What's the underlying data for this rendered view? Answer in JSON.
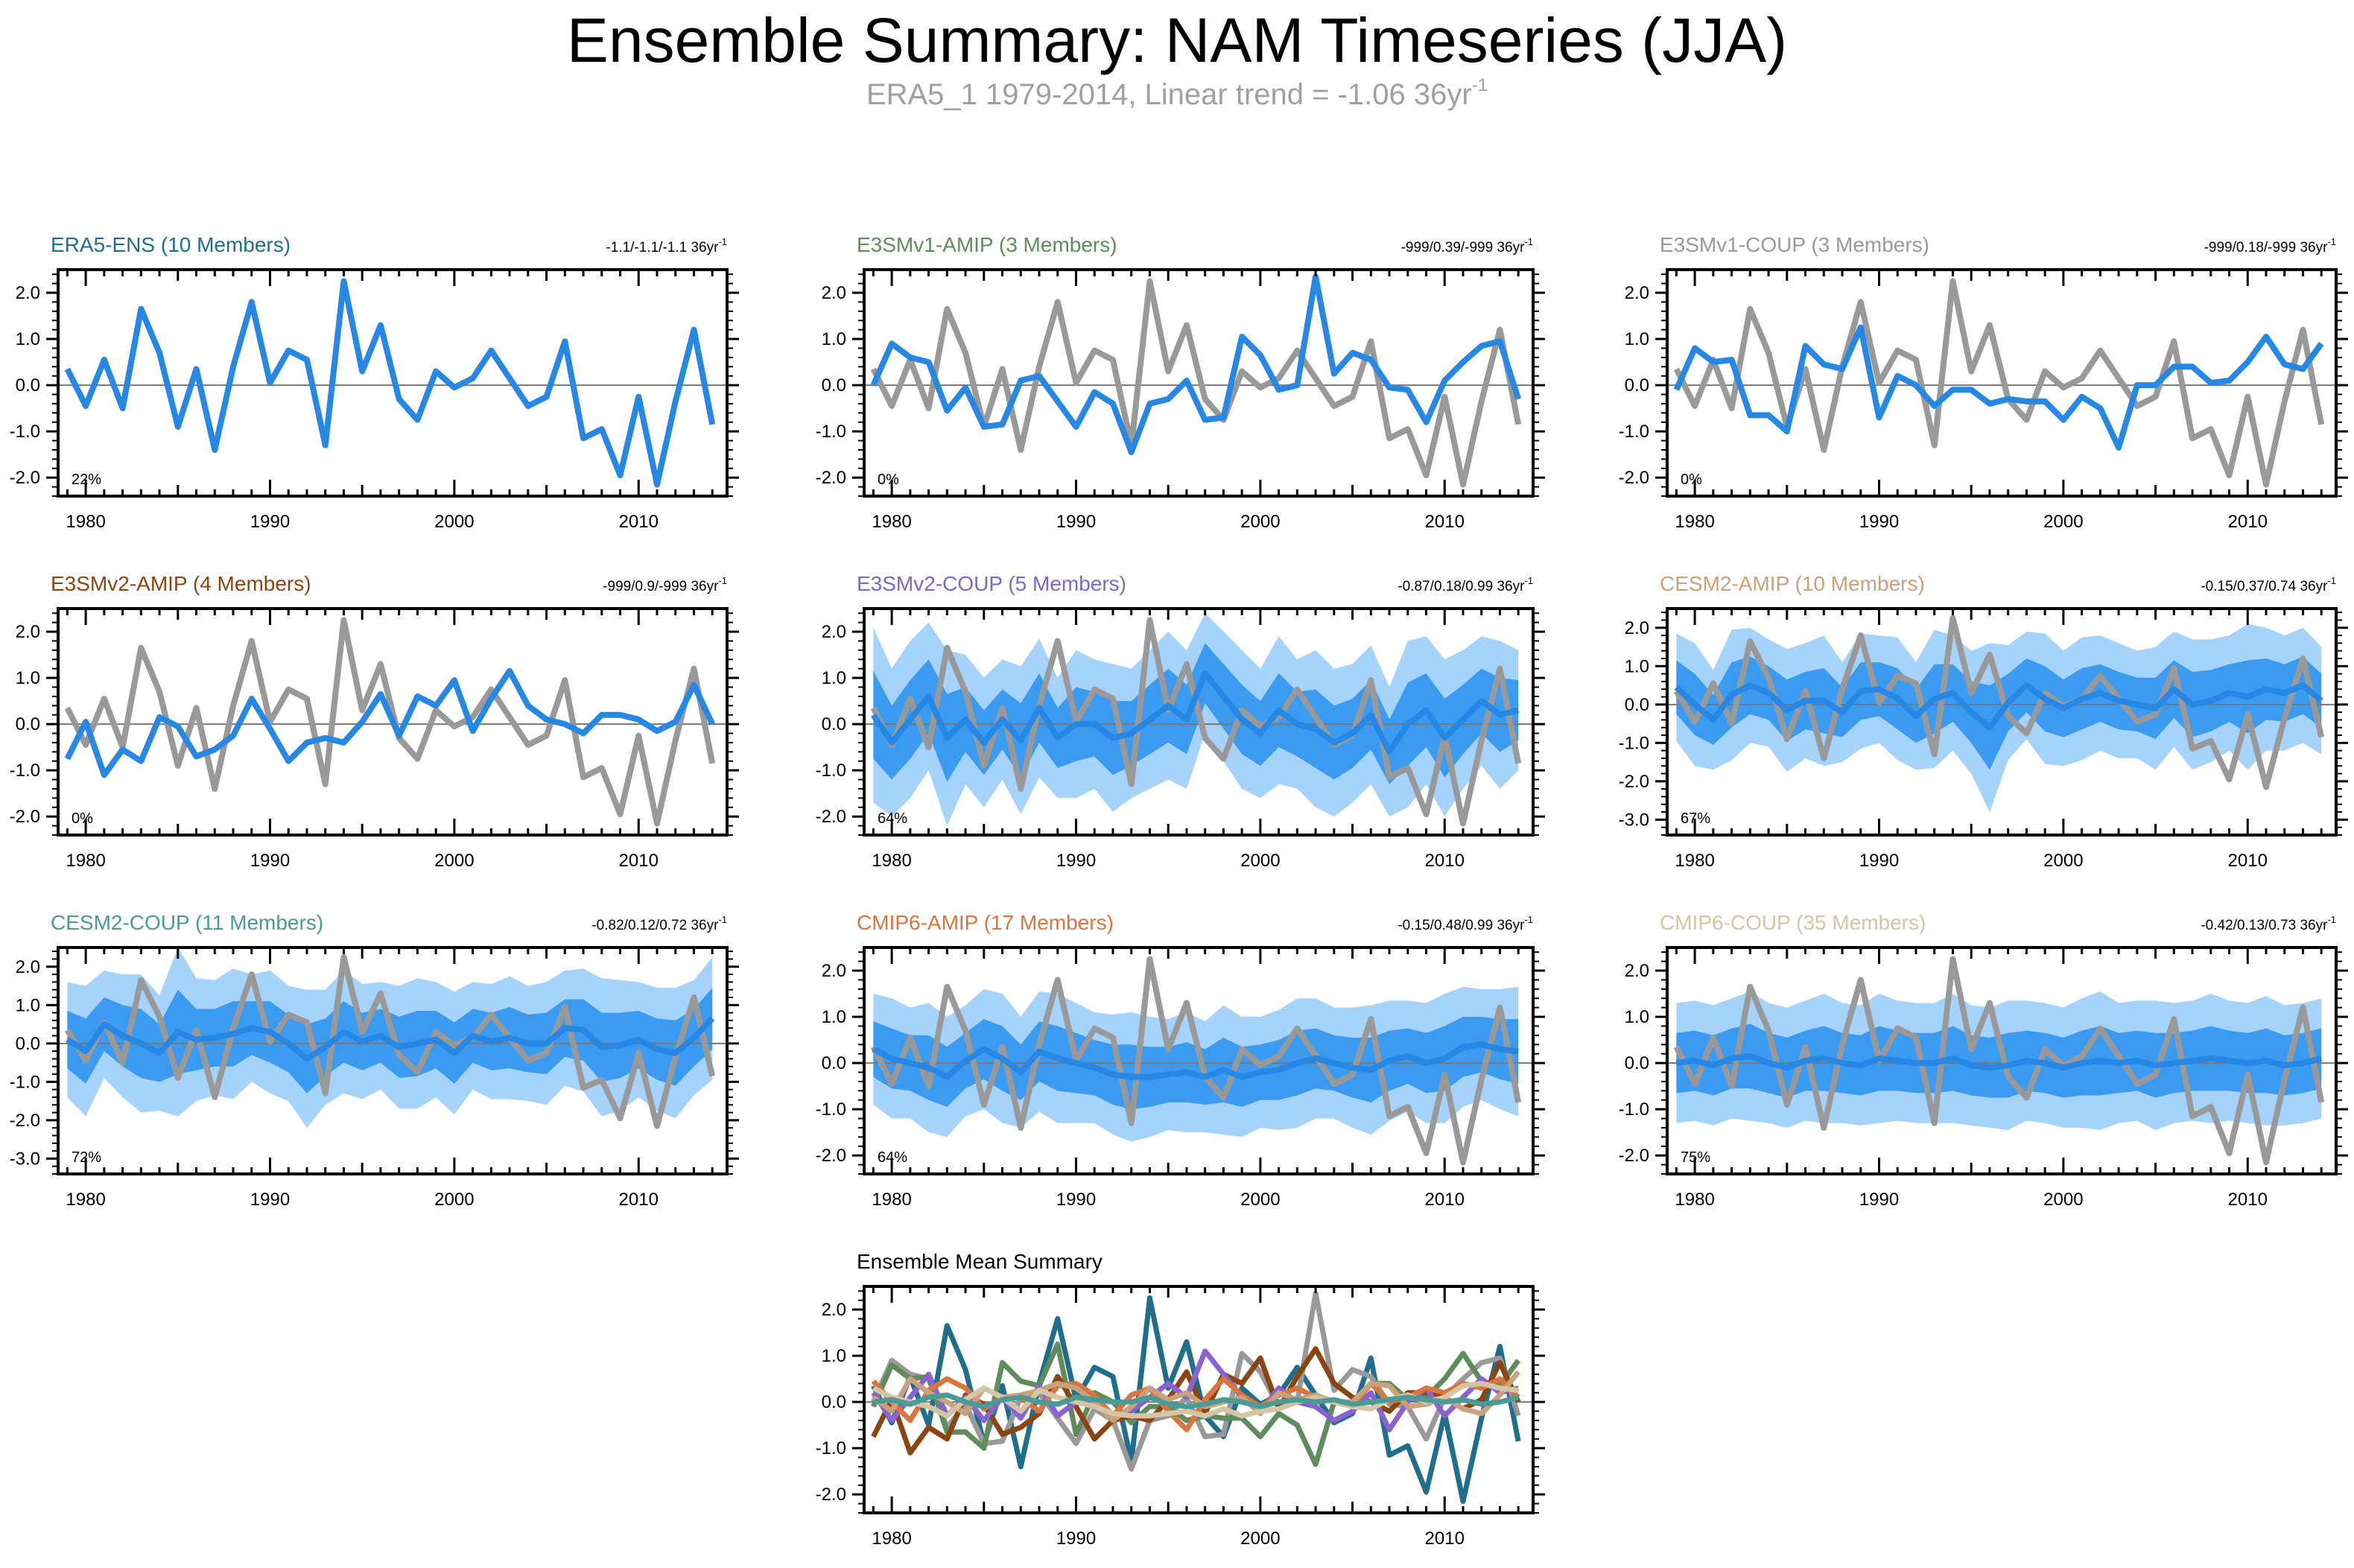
{
  "title": "Ensemble Summary: NAM Timeseries (JJA)",
  "subtitle": {
    "text": "ERA5_1 1979-2014, Linear trend = -1.06 36yr",
    "sup": "-1"
  },
  "colors": {
    "obs_gray": "#999999",
    "ens_mean": "#2787e5",
    "band_outer": "#a6d3fb",
    "band_inner": "#3a9bf0",
    "zero_line": "#777777"
  },
  "chart_data": [
    {
      "type": "line",
      "title": "ERA5-ENS (10 Members)",
      "title_color": "#1f6e8c",
      "trend": "-1.1/-1.1/-1.1 36yr",
      "trend_sup": "-1",
      "pct": "22%",
      "bands": false,
      "obs": false,
      "x_ticks": [
        "1980",
        "1990",
        "2000",
        "2010"
      ],
      "y_ticks": [
        "2.0",
        "1.0",
        "0.0",
        "-1.0",
        "-2.0"
      ],
      "ylim": [
        -2.4,
        2.5
      ],
      "xlim": [
        1978.5,
        2014.8
      ],
      "mean": [
        0.35,
        -0.45,
        0.55,
        -0.5,
        1.65,
        0.7,
        -0.9,
        0.35,
        -1.4,
        0.4,
        1.8,
        0.05,
        0.75,
        0.55,
        -1.3,
        2.25,
        0.3,
        1.3,
        -0.3,
        -0.75,
        0.3,
        -0.05,
        0.15,
        0.75,
        0.15,
        -0.45,
        -0.25,
        0.95,
        -1.15,
        -0.95,
        -1.95,
        -0.25,
        -2.15,
        -0.35,
        1.2,
        -0.85
      ]
    },
    {
      "type": "line",
      "title": "E3SMv1-AMIP (3 Members)",
      "title_color": "#5f8c5c",
      "trend": "-999/0.39/-999 36yr",
      "trend_sup": "-1",
      "pct": "0%",
      "bands": false,
      "obs": true,
      "x_ticks": [
        "1980",
        "1990",
        "2000",
        "2010"
      ],
      "y_ticks": [
        "2.0",
        "1.0",
        "0.0",
        "-1.0",
        "-2.0"
      ],
      "ylim": [
        -2.4,
        2.5
      ],
      "xlim": [
        1978.5,
        2014.8
      ],
      "mean": [
        0.0,
        0.9,
        0.6,
        0.5,
        -0.55,
        -0.05,
        -0.9,
        -0.85,
        0.1,
        0.2,
        -0.35,
        -0.9,
        -0.15,
        -0.4,
        -1.45,
        -0.4,
        -0.3,
        0.1,
        -0.75,
        -0.7,
        1.05,
        0.65,
        -0.1,
        0.0,
        2.35,
        0.25,
        0.7,
        0.55,
        -0.05,
        -0.1,
        -0.8,
        0.1,
        0.5,
        0.85,
        0.95,
        -0.3
      ]
    },
    {
      "type": "line",
      "title": "E3SMv1-COUP (3 Members)",
      "title_color": "#999999",
      "trend": "-999/0.18/-999 36yr",
      "trend_sup": "-1",
      "pct": "0%",
      "bands": false,
      "obs": true,
      "x_ticks": [
        "1980",
        "1990",
        "2000",
        "2010"
      ],
      "y_ticks": [
        "2.0",
        "1.0",
        "0.0",
        "-1.0",
        "-2.0"
      ],
      "ylim": [
        -2.4,
        2.5
      ],
      "xlim": [
        1978.5,
        2014.8
      ],
      "mean": [
        -0.1,
        0.8,
        0.5,
        0.55,
        -0.65,
        -0.65,
        -1.0,
        0.85,
        0.45,
        0.35,
        1.25,
        -0.7,
        0.2,
        0.0,
        -0.45,
        -0.1,
        -0.1,
        -0.4,
        -0.3,
        -0.35,
        -0.35,
        -0.75,
        -0.25,
        -0.5,
        -1.35,
        0.0,
        0.0,
        0.4,
        0.4,
        0.05,
        0.1,
        0.5,
        1.05,
        0.45,
        0.35,
        0.9
      ]
    },
    {
      "type": "line",
      "title": "E3SMv2-AMIP (4 Members)",
      "title_color": "#8b4513",
      "trend": "-999/0.9/-999 36yr",
      "trend_sup": "-1",
      "pct": "0%",
      "bands": false,
      "obs": true,
      "x_ticks": [
        "1980",
        "1990",
        "2000",
        "2010"
      ],
      "y_ticks": [
        "2.0",
        "1.0",
        "0.0",
        "-1.0",
        "-2.0"
      ],
      "ylim": [
        -2.4,
        2.5
      ],
      "xlim": [
        1978.5,
        2014.8
      ],
      "mean": [
        -0.75,
        0.05,
        -1.1,
        -0.55,
        -0.8,
        0.15,
        -0.05,
        -0.7,
        -0.55,
        -0.25,
        0.55,
        -0.1,
        -0.8,
        -0.4,
        -0.3,
        -0.4,
        0.05,
        0.65,
        -0.25,
        0.6,
        0.4,
        0.95,
        -0.15,
        0.55,
        1.15,
        0.4,
        0.1,
        0.0,
        -0.2,
        0.2,
        0.2,
        0.1,
        -0.15,
        0.05,
        0.85,
        0.0
      ]
    },
    {
      "type": "line",
      "title": "E3SMv2-COUP (5 Members)",
      "title_color": "#7b68c8",
      "trend": "-0.87/0.18/0.99 36yr",
      "trend_sup": "-1",
      "pct": "64%",
      "bands": true,
      "obs": true,
      "x_ticks": [
        "1980",
        "1990",
        "2000",
        "2010"
      ],
      "y_ticks": [
        "2.0",
        "1.0",
        "0.0",
        "-1.0",
        "-2.0"
      ],
      "ylim": [
        -2.4,
        2.5
      ],
      "xlim": [
        1978.5,
        2014.8
      ],
      "mean": [
        0.2,
        -0.4,
        0.1,
        0.6,
        -0.3,
        0.1,
        -0.4,
        0.1,
        -0.35,
        0.35,
        -0.3,
        0.0,
        0.0,
        -0.3,
        -0.2,
        0.1,
        0.4,
        0.1,
        1.1,
        0.6,
        0.1,
        -0.2,
        0.3,
        0.0,
        -0.1,
        -0.4,
        -0.2,
        0.2,
        -0.6,
        0.0,
        0.3,
        -0.3,
        0.1,
        0.5,
        0.2,
        0.3
      ],
      "spread": [
        1.9,
        1.6,
        1.7,
        1.6,
        1.9,
        1.4,
        1.4,
        1.3,
        1.6,
        1.5,
        1.3,
        1.6,
        1.4,
        1.6,
        1.4,
        1.5,
        1.6,
        1.5,
        1.3,
        1.4,
        1.5,
        1.4,
        1.6,
        1.4,
        1.7,
        1.6,
        1.5,
        1.5,
        1.4,
        1.8,
        1.6,
        1.7,
        1.5,
        1.4,
        1.6,
        1.3
      ]
    },
    {
      "type": "line",
      "title": "CESM2-AMIP (10 Members)",
      "title_color": "#c8a27c",
      "trend": "-0.15/0.37/0.74 36yr",
      "trend_sup": "-1",
      "pct": "67%",
      "bands": true,
      "obs": true,
      "x_ticks": [
        "1980",
        "1990",
        "2000",
        "2010"
      ],
      "y_ticks": [
        "2.0",
        "1.0",
        "0.0",
        "-1.0",
        "-2.0",
        "-3.0"
      ],
      "ylim": [
        -3.4,
        2.5
      ],
      "xlim": [
        1978.5,
        2014.8
      ],
      "mean": [
        0.45,
        0.0,
        -0.4,
        0.25,
        0.5,
        0.3,
        -0.15,
        0.1,
        0.1,
        -0.2,
        0.35,
        0.4,
        0.15,
        -0.3,
        0.15,
        0.3,
        -0.2,
        -0.6,
        0.05,
        0.5,
        0.15,
        -0.1,
        0.15,
        0.3,
        0.1,
        0.0,
        -0.1,
        0.4,
        0.0,
        0.1,
        0.3,
        0.2,
        0.4,
        0.3,
        0.5,
        0.1
      ],
      "spread": [
        1.4,
        1.6,
        1.3,
        1.7,
        1.5,
        1.4,
        1.6,
        1.5,
        1.7,
        1.3,
        1.5,
        1.4,
        1.6,
        1.4,
        1.8,
        1.5,
        1.6,
        2.2,
        1.5,
        1.4,
        1.7,
        1.5,
        1.6,
        1.5,
        1.5,
        1.4,
        1.6,
        1.5,
        1.7,
        1.6,
        1.5,
        1.9,
        1.6,
        1.5,
        1.5,
        1.4
      ]
    },
    {
      "type": "line",
      "title": "CESM2-COUP (11 Members)",
      "title_color": "#4a9a96",
      "trend": "-0.82/0.12/0.72 36yr",
      "trend_sup": "-1",
      "pct": "72%",
      "bands": true,
      "obs": true,
      "x_ticks": [
        "1980",
        "1990",
        "2000",
        "2010"
      ],
      "y_ticks": [
        "2.0",
        "1.0",
        "0.0",
        "-1.0",
        "-2.0",
        "-3.0"
      ],
      "ylim": [
        -3.4,
        2.5
      ],
      "xlim": [
        1978.5,
        2014.8
      ],
      "mean": [
        0.1,
        -0.2,
        0.5,
        0.2,
        0.0,
        -0.25,
        0.3,
        0.1,
        0.15,
        0.25,
        0.4,
        0.3,
        0.0,
        -0.4,
        -0.1,
        0.3,
        0.05,
        0.2,
        -0.1,
        0.0,
        0.1,
        -0.25,
        0.2,
        0.05,
        0.15,
        0.0,
        0.0,
        0.4,
        0.35,
        -0.1,
        -0.05,
        0.1,
        -0.15,
        -0.25,
        0.15,
        0.65
      ],
      "spread": [
        1.5,
        1.7,
        1.4,
        1.6,
        1.8,
        1.5,
        2.2,
        1.6,
        1.5,
        1.7,
        1.4,
        1.6,
        1.5,
        1.8,
        1.5,
        1.6,
        1.5,
        1.4,
        1.6,
        1.7,
        1.5,
        1.6,
        1.4,
        1.5,
        1.6,
        1.5,
        1.6,
        1.5,
        1.6,
        1.8,
        1.7,
        1.5,
        1.6,
        1.7,
        1.5,
        1.6
      ]
    },
    {
      "type": "line",
      "title": "CMIP6-AMIP (17 Members)",
      "title_color": "#d9753f",
      "trend": "-0.15/0.48/0.99 36yr",
      "trend_sup": "-1",
      "pct": "64%",
      "bands": true,
      "obs": true,
      "x_ticks": [
        "1980",
        "1990",
        "2000",
        "2010"
      ],
      "y_ticks": [
        "2.0",
        "1.0",
        "0.0",
        "-1.0",
        "-2.0"
      ],
      "ylim": [
        -2.4,
        2.5
      ],
      "xlim": [
        1978.5,
        2014.8
      ],
      "mean": [
        0.3,
        0.1,
        0.0,
        -0.1,
        -0.3,
        0.05,
        0.3,
        0.1,
        -0.2,
        0.25,
        0.1,
        0.0,
        -0.1,
        -0.25,
        -0.3,
        -0.3,
        -0.25,
        -0.2,
        -0.3,
        -0.15,
        -0.3,
        -0.2,
        -0.15,
        0.0,
        0.1,
        0.0,
        -0.1,
        -0.15,
        0.05,
        0.15,
        0.0,
        0.1,
        0.35,
        0.4,
        0.3,
        0.25
      ],
      "spread": [
        1.2,
        1.3,
        1.2,
        1.4,
        1.3,
        1.2,
        1.3,
        1.4,
        1.2,
        1.3,
        1.4,
        1.3,
        1.2,
        1.3,
        1.4,
        1.3,
        1.2,
        1.3,
        1.2,
        1.4,
        1.3,
        1.2,
        1.3,
        1.4,
        1.3,
        1.2,
        1.3,
        1.4,
        1.3,
        1.2,
        1.3,
        1.4,
        1.3,
        1.2,
        1.3,
        1.4
      ]
    },
    {
      "type": "line",
      "title": "CMIP6-COUP (35 Members)",
      "title_color": "#d4c6a4",
      "trend": "-0.42/0.13/0.73 36yr",
      "trend_sup": "-1",
      "pct": "75%",
      "bands": true,
      "obs": true,
      "x_ticks": [
        "1980",
        "1990",
        "2000",
        "2010"
      ],
      "y_ticks": [
        "2.0",
        "1.0",
        "0.0",
        "-1.0",
        "-2.0"
      ],
      "ylim": [
        -2.4,
        2.5
      ],
      "xlim": [
        1978.5,
        2014.8
      ],
      "mean": [
        0.0,
        0.05,
        -0.05,
        0.1,
        0.15,
        0.0,
        -0.1,
        0.05,
        0.1,
        0.0,
        -0.05,
        0.1,
        0.05,
        0.0,
        0.0,
        0.1,
        -0.05,
        -0.1,
        -0.05,
        0.05,
        0.0,
        -0.1,
        0.0,
        0.05,
        0.0,
        0.05,
        -0.05,
        0.0,
        0.05,
        0.1,
        0.05,
        0.0,
        0.05,
        -0.05,
        0.0,
        0.1
      ],
      "spread": [
        1.3,
        1.3,
        1.3,
        1.3,
        1.4,
        1.3,
        1.3,
        1.3,
        1.4,
        1.3,
        1.3,
        1.4,
        1.3,
        1.3,
        1.3,
        1.4,
        1.3,
        1.3,
        1.4,
        1.3,
        1.3,
        1.3,
        1.4,
        1.5,
        1.3,
        1.3,
        1.4,
        1.3,
        1.3,
        1.4,
        1.3,
        1.3,
        1.4,
        1.3,
        1.3,
        1.3
      ]
    },
    {
      "type": "line",
      "title": "Ensemble Mean Summary",
      "title_color": "#000000",
      "trend": "",
      "trend_sup": "",
      "pct": "",
      "bands": false,
      "obs": false,
      "summary": true,
      "x_ticks": [
        "1980",
        "1990",
        "2000",
        "2010"
      ],
      "y_ticks": [
        "2.0",
        "1.0",
        "0.0",
        "-1.0",
        "-2.0"
      ],
      "ylim": [
        -2.4,
        2.5
      ],
      "xlim": [
        1978.5,
        2014.8
      ]
    }
  ],
  "obs_series": {
    "name": "ERA5_1",
    "years": [
      1979,
      2014
    ],
    "values": [
      0.35,
      -0.45,
      0.55,
      -0.5,
      1.65,
      0.7,
      -0.9,
      0.35,
      -1.4,
      0.4,
      1.8,
      0.05,
      0.75,
      0.55,
      -1.3,
      2.25,
      0.3,
      1.3,
      -0.3,
      -0.75,
      0.3,
      -0.05,
      0.15,
      0.75,
      0.15,
      -0.45,
      -0.25,
      0.95,
      -1.15,
      -0.95,
      -1.95,
      -0.25,
      -2.15,
      -0.35,
      1.2,
      -0.85
    ]
  }
}
